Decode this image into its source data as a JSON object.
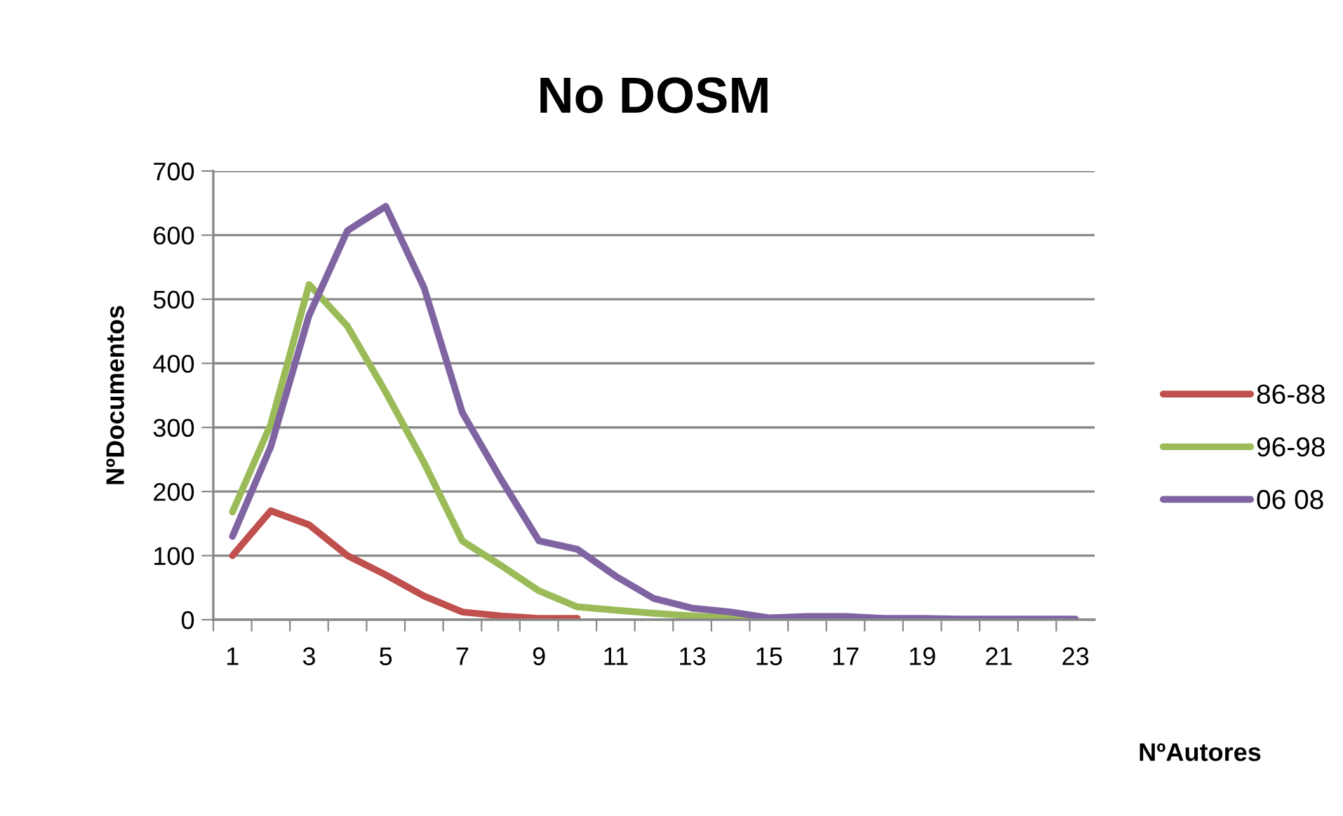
{
  "chart_data": {
    "type": "line",
    "title": "No DOSM",
    "xlabel": "NºAutores",
    "ylabel": "NºDocumentos",
    "categories": [
      "1",
      null,
      "3",
      null,
      "5",
      null,
      "7",
      null,
      "9",
      null,
      "11",
      null,
      "13",
      null,
      "15",
      null,
      "17",
      null,
      "19",
      null,
      "21",
      null,
      "23"
    ],
    "series": [
      {
        "name": "86-88",
        "color": "#c0504d",
        "values": [
          100,
          170,
          148,
          100,
          70,
          37,
          12,
          6,
          2,
          2,
          null,
          null,
          null,
          null,
          null,
          null,
          null,
          null,
          null,
          null,
          null,
          null,
          null
        ]
      },
      {
        "name": "96-98",
        "color": "#9bbb59",
        "values": [
          168,
          305,
          523,
          458,
          355,
          245,
          123,
          85,
          45,
          20,
          15,
          10,
          6,
          3,
          2,
          null,
          null,
          null,
          null,
          null,
          null,
          null,
          null
        ]
      },
      {
        "name": "06 08",
        "color": "#8064a2",
        "values": [
          130,
          270,
          475,
          607,
          645,
          518,
          323,
          220,
          123,
          110,
          68,
          33,
          18,
          12,
          3,
          5,
          5,
          2,
          2,
          1,
          1,
          1,
          1
        ]
      }
    ],
    "ylim": [
      0,
      700
    ],
    "yticks": [
      0,
      100,
      200,
      300,
      400,
      500,
      600,
      700
    ],
    "grid": "y",
    "legend": "right",
    "marker": "none",
    "line_style": "solid"
  }
}
